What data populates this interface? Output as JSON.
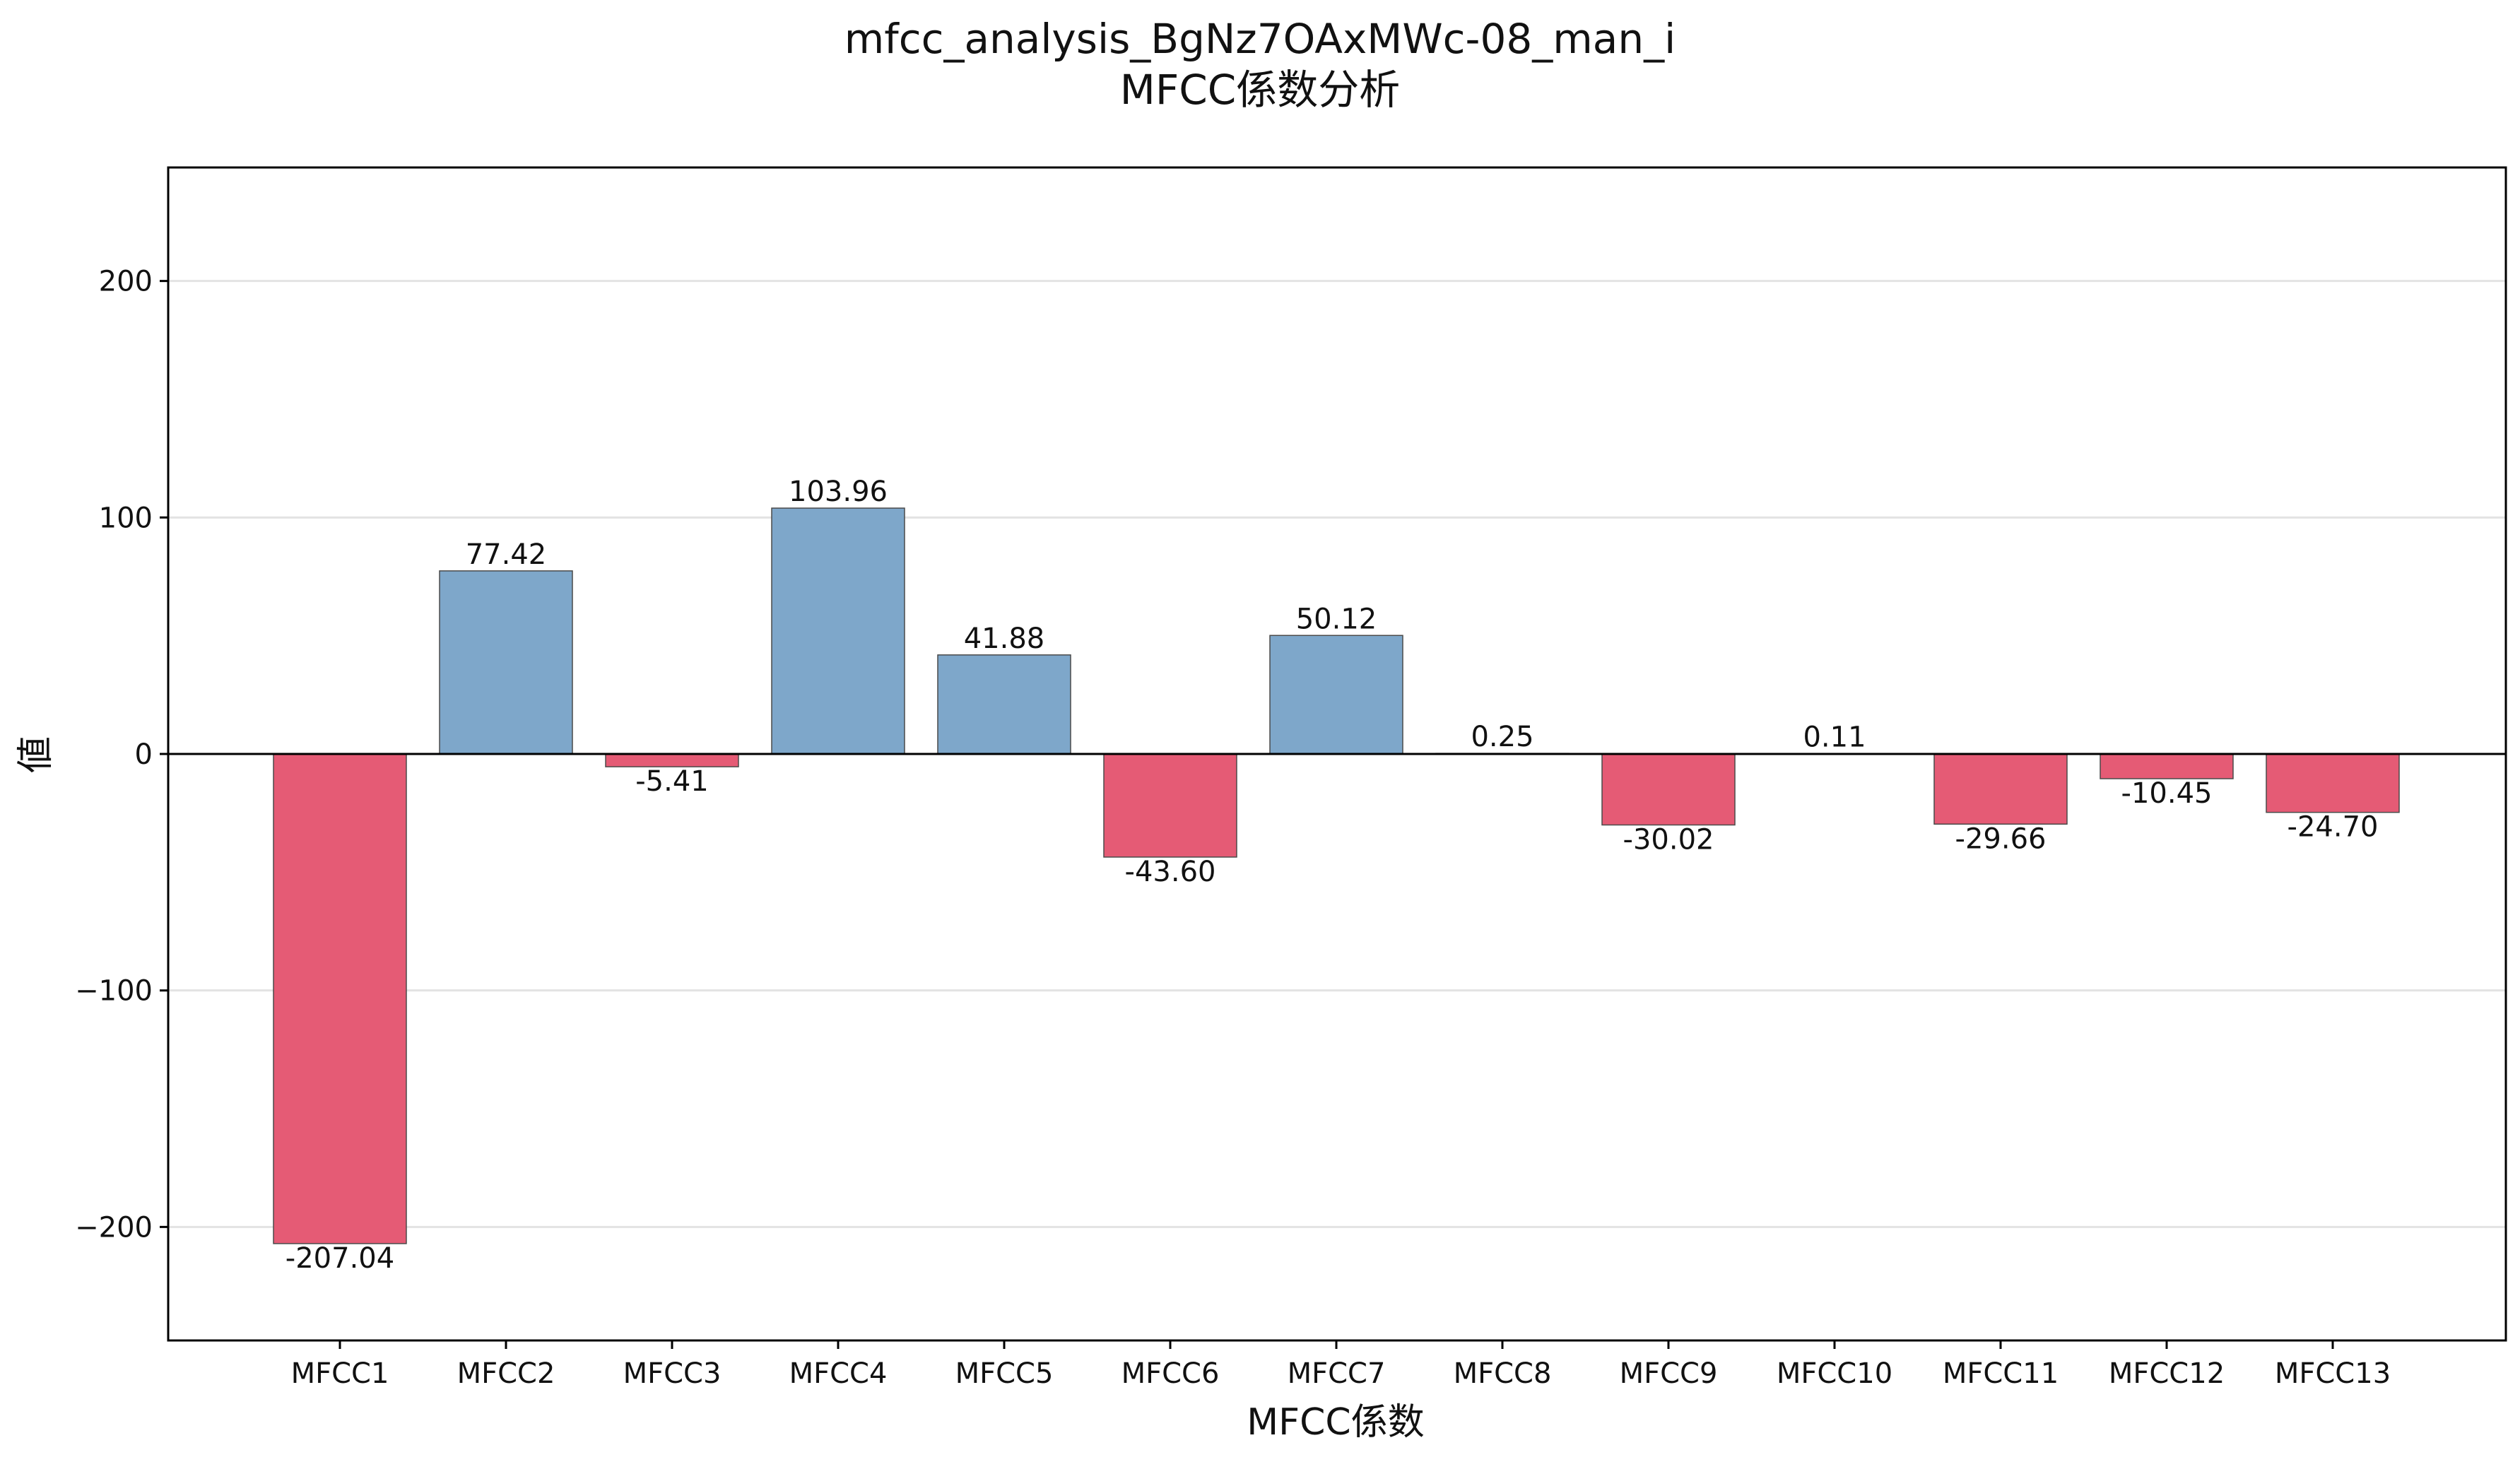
{
  "chart_data": {
    "type": "bar",
    "title": "mfcc_analysis_BgNz7OAxMWc-08_man_i",
    "subtitle": "MFCC係数分析",
    "xlabel": "MFCC係数",
    "ylabel": "値",
    "categories": [
      "MFCC1",
      "MFCC2",
      "MFCC3",
      "MFCC4",
      "MFCC5",
      "MFCC6",
      "MFCC7",
      "MFCC8",
      "MFCC9",
      "MFCC10",
      "MFCC11",
      "MFCC12",
      "MFCC13"
    ],
    "values": [
      -207.04,
      77.42,
      -5.41,
      103.96,
      41.88,
      -43.6,
      50.12,
      0.25,
      -30.02,
      0.11,
      -29.66,
      -10.45,
      -24.7
    ],
    "value_labels": [
      "-207.04",
      "77.42",
      "-5.41",
      "103.96",
      "41.88",
      "-43.60",
      "50.12",
      "0.25",
      "-30.02",
      "0.11",
      "-29.66",
      "-10.45",
      "-24.70"
    ],
    "ylim": [
      -248,
      248
    ],
    "yticks": [
      -200,
      -100,
      0,
      100,
      200
    ],
    "ytick_labels": [
      "−200",
      "−100",
      "0",
      "100",
      "200"
    ],
    "grid": "y",
    "colors": {
      "positive": "#7ea7ca",
      "negative": "#e55b75",
      "edge": "#4a4a4a"
    }
  }
}
